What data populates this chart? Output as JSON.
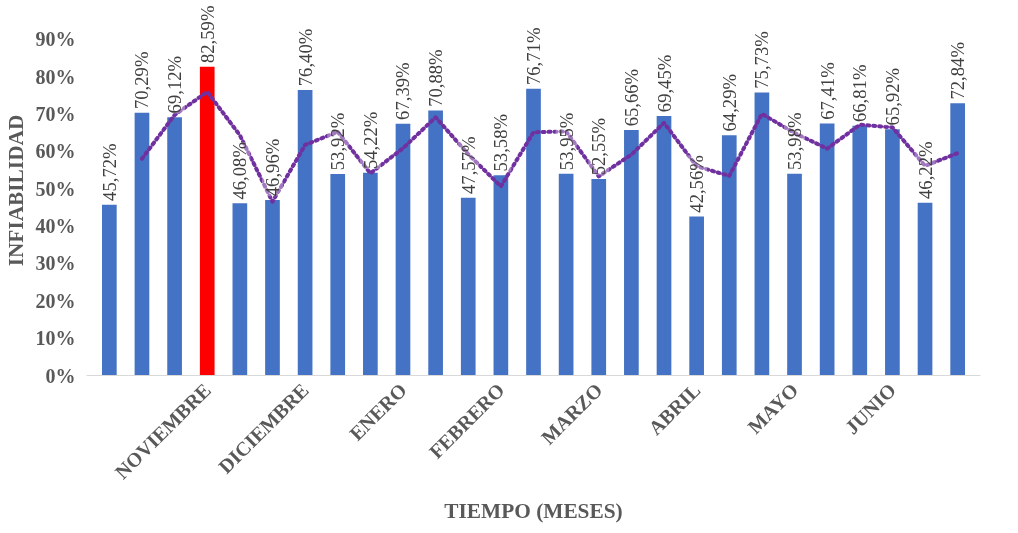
{
  "chart_data": {
    "type": "bar",
    "xlabel": "TIEMPO (MESES)",
    "ylabel": "INFIABILIDAD",
    "categories": [
      null,
      null,
      null,
      "NOVIEMBRE",
      null,
      null,
      "DICIEMBRE",
      null,
      null,
      "ENERO",
      null,
      null,
      "FEBRERO",
      null,
      null,
      "MARZO",
      null,
      null,
      "ABRIL",
      null,
      null,
      "MAYO",
      null,
      null,
      "JUNIO",
      null,
      null
    ],
    "ylim": [
      0,
      90
    ],
    "yticks": [
      {
        "value": 0,
        "label": "0%"
      },
      {
        "value": 10,
        "label": "10%"
      },
      {
        "value": 20,
        "label": "20%"
      },
      {
        "value": 30,
        "label": "30%"
      },
      {
        "value": 40,
        "label": "40%"
      },
      {
        "value": 50,
        "label": "50%"
      },
      {
        "value": 60,
        "label": "60%"
      },
      {
        "value": 70,
        "label": "70%"
      },
      {
        "value": 80,
        "label": "80%"
      },
      {
        "value": 90,
        "label": "90%"
      }
    ],
    "grid": false,
    "series": [
      {
        "values": [
          45.72,
          70.29,
          69.12,
          82.59,
          46.08,
          46.96,
          76.4,
          53.92,
          54.22,
          67.39,
          70.88,
          47.57,
          53.58,
          76.71,
          53.95,
          52.55,
          65.66,
          69.45,
          42.56,
          64.29,
          75.73,
          53.98,
          67.41,
          66.81,
          65.92,
          46.22,
          72.84
        ],
        "colors": [
          "#4472c4",
          "#4472c4",
          "#4472c4",
          "#ff0000",
          "#4472c4",
          "#4472c4",
          "#4472c4",
          "#4472c4",
          "#4472c4",
          "#4472c4",
          "#4472c4",
          "#4472c4",
          "#4472c4",
          "#4472c4",
          "#4472c4",
          "#4472c4",
          "#4472c4",
          "#4472c4",
          "#4472c4",
          "#4472c4",
          "#4472c4",
          "#4472c4",
          "#4472c4",
          "#4472c4",
          "#4472c4",
          "#4472c4",
          "#4472c4"
        ],
        "value_labels": [
          "45,72%",
          "70,29%",
          "69,12%",
          "82,59%",
          "46,08%",
          "46,96%",
          "76,40%",
          "53,92%",
          "54,22%",
          "67,39%",
          "70,88%",
          "47,57%",
          "53,58%",
          "76,71%",
          "53,95%",
          "52,55%",
          "65,66%",
          "69,45%",
          "42,56%",
          "64,29%",
          "75,73%",
          "53,98%",
          "67,41%",
          "66,81%",
          "65,92%",
          "46,22%",
          "72,84%"
        ]
      },
      {
        "type": "line",
        "color": "#7030a0",
        "line_style": "dotted",
        "marker": "none",
        "values": [
          null,
          58.0,
          69.7,
          75.9,
          64.3,
          46.5,
          61.7,
          65.2,
          54.1,
          60.8,
          69.1,
          59.2,
          50.6,
          65.1,
          65.3,
          53.3,
          59.1,
          67.6,
          56.0,
          53.4,
          70.0,
          64.9,
          60.7,
          67.1,
          66.4,
          56.1,
          59.5
        ]
      }
    ]
  }
}
